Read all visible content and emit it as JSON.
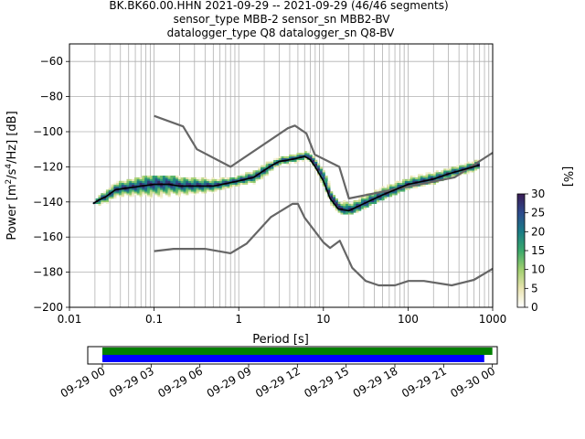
{
  "title_lines": [
    "BK.BK60.00.HHN   2021-09-29 -- 2021-09-29  (46/46 segments)",
    "sensor_type MBB-2 sensor_sn MBB2-BV",
    "datalogger_type Q8 datalogger_sn Q8-BV"
  ],
  "chart_data": [
    {
      "type": "heatmap",
      "subtype": "ppsd",
      "xlabel": "Period [s]",
      "ylabel": "Power [m²/s⁴/Hz] [dB]",
      "xscale": "log",
      "xlim": [
        0.01,
        1000
      ],
      "ylim": [
        -200,
        -50
      ],
      "xticks": [
        0.01,
        0.1,
        1,
        10,
        100,
        1000
      ],
      "xtick_labels": [
        "0.01",
        "0.1",
        "1",
        "10",
        "100",
        "1000"
      ],
      "yticks": [
        -200,
        -180,
        -160,
        -140,
        -120,
        -100,
        -80,
        -60
      ],
      "ytick_labels": [
        "−200",
        "−180",
        "−160",
        "−140",
        "−120",
        "−100",
        "−80",
        "−60"
      ],
      "grid": true,
      "colorbar": {
        "label": "[%]",
        "range": [
          0,
          30
        ],
        "ticks": [
          0,
          5,
          10,
          15,
          20,
          25,
          30
        ],
        "tick_labels": [
          "0",
          "5",
          "10",
          "15",
          "20",
          "25",
          "30"
        ],
        "colormap": [
          "#ffffff",
          "#e9e4b0",
          "#9fcf6e",
          "#3aa86b",
          "#1a7c86",
          "#2d4a8c",
          "#3a1c55"
        ]
      },
      "series": [
        {
          "role": "mode",
          "color": "#000000",
          "points": [
            [
              0.019,
              -141
            ],
            [
              0.022,
              -139
            ],
            [
              0.027,
              -137
            ],
            [
              0.035,
              -133
            ],
            [
              0.05,
              -132
            ],
            [
              0.07,
              -131
            ],
            [
              0.1,
              -130
            ],
            [
              0.15,
              -130
            ],
            [
              0.2,
              -131
            ],
            [
              0.3,
              -131
            ],
            [
              0.5,
              -131
            ],
            [
              0.8,
              -129
            ],
            [
              1.0,
              -128
            ],
            [
              1.5,
              -126
            ],
            [
              2.0,
              -122
            ],
            [
              2.5,
              -119
            ],
            [
              3.0,
              -117
            ],
            [
              4.0,
              -116
            ],
            [
              5.0,
              -115
            ],
            [
              6.0,
              -114
            ],
            [
              7.0,
              -116
            ],
            [
              8.0,
              -120
            ],
            [
              10.0,
              -128
            ],
            [
              12.0,
              -138
            ],
            [
              15.0,
              -144
            ],
            [
              20.0,
              -145
            ],
            [
              30.0,
              -141
            ],
            [
              50.0,
              -136
            ],
            [
              100.0,
              -130
            ],
            [
              200.0,
              -127
            ],
            [
              300.0,
              -124
            ],
            [
              500.0,
              -121
            ],
            [
              700.0,
              -119
            ]
          ]
        },
        {
          "role": "nhnm",
          "color": "#666666",
          "points": [
            [
              0.1,
              -91
            ],
            [
              0.22,
              -97
            ],
            [
              0.32,
              -110
            ],
            [
              0.8,
              -120
            ],
            [
              3.8,
              -98
            ],
            [
              4.6,
              -96.5
            ],
            [
              6.3,
              -101
            ],
            [
              7.9,
              -113
            ],
            [
              15.4,
              -120
            ],
            [
              20.0,
              -138
            ],
            [
              354.8,
              -126
            ],
            [
              1000.0,
              -112
            ]
          ]
        },
        {
          "role": "nlnm",
          "color": "#666666",
          "points": [
            [
              0.1,
              -168
            ],
            [
              0.17,
              -166.7
            ],
            [
              0.4,
              -166.7
            ],
            [
              0.8,
              -169.2
            ],
            [
              1.24,
              -163.7
            ],
            [
              2.4,
              -148.6
            ],
            [
              4.3,
              -141.1
            ],
            [
              5.0,
              -141.1
            ],
            [
              6.0,
              -149
            ],
            [
              10.0,
              -163
            ],
            [
              12.0,
              -166.2
            ],
            [
              15.6,
              -162.1
            ],
            [
              21.9,
              -177.5
            ],
            [
              31.6,
              -185
            ],
            [
              45.0,
              -187.5
            ],
            [
              70.0,
              -187.5
            ],
            [
              101.0,
              -185
            ],
            [
              154.0,
              -185
            ],
            [
              328.0,
              -187.5
            ],
            [
              600.0,
              -184.4
            ],
            [
              1000.0,
              -178
            ]
          ]
        }
      ],
      "density_band": {
        "description": "probability density of observed power",
        "rows": [
          [
            0.019,
            -141,
            0.019,
            -141
          ],
          [
            0.022,
            -142,
            0.022,
            -137
          ],
          [
            0.027,
            -140,
            0.027,
            -134
          ],
          [
            0.035,
            -137,
            0.035,
            -130
          ],
          [
            0.05,
            -136,
            0.05,
            -128
          ],
          [
            0.07,
            -137,
            0.07,
            -127
          ],
          [
            0.1,
            -138,
            0.1,
            -126
          ],
          [
            0.15,
            -137,
            0.15,
            -126
          ],
          [
            0.2,
            -136,
            0.2,
            -127
          ],
          [
            0.3,
            -135,
            0.3,
            -127
          ],
          [
            0.5,
            -134,
            0.5,
            -128
          ],
          [
            0.8,
            -132,
            0.8,
            -127
          ],
          [
            1.0,
            -131,
            1.0,
            -126
          ],
          [
            1.5,
            -129,
            1.5,
            -123
          ],
          [
            2.0,
            -125,
            2.0,
            -119
          ],
          [
            2.5,
            -121,
            2.5,
            -117
          ],
          [
            3.0,
            -119,
            3.0,
            -115
          ],
          [
            4.0,
            -118,
            4.0,
            -114
          ],
          [
            5.0,
            -117,
            5.0,
            -113
          ],
          [
            6.0,
            -116,
            6.0,
            -112
          ],
          [
            7.0,
            -118,
            7.0,
            -113
          ],
          [
            8.0,
            -123,
            8.0,
            -117
          ],
          [
            10.0,
            -132,
            10.0,
            -124
          ],
          [
            12.0,
            -141,
            12.0,
            -133
          ],
          [
            15.0,
            -146,
            15.0,
            -139
          ],
          [
            20.0,
            -147,
            20.0,
            -140
          ],
          [
            30.0,
            -143,
            30.0,
            -136
          ],
          [
            50.0,
            -138,
            50.0,
            -131
          ],
          [
            100.0,
            -132,
            100.0,
            -126
          ],
          [
            200.0,
            -129,
            200.0,
            -123
          ],
          [
            300.0,
            -126,
            300.0,
            -121
          ],
          [
            500.0,
            -123,
            500.0,
            -118
          ],
          [
            700.0,
            -121,
            700.0,
            -116
          ]
        ]
      }
    },
    {
      "type": "bar",
      "subtype": "data-coverage",
      "xlabel": "",
      "xticks": [
        "09-29 00",
        "09-29 03",
        "09-29 06",
        "09-29 09",
        "09-29 12",
        "09-29 15",
        "09-29 18",
        "09-29 21",
        "09-30 00"
      ],
      "xlim_hours": [
        -0.9,
        24.3
      ],
      "bars": [
        {
          "role": "psd-segments",
          "color": "#008000",
          "start_hour": 0.0,
          "end_hour": 24.0
        },
        {
          "role": "data-available",
          "color": "#0000ff",
          "start_hour": 0.0,
          "end_hour": 23.5
        }
      ]
    }
  ]
}
